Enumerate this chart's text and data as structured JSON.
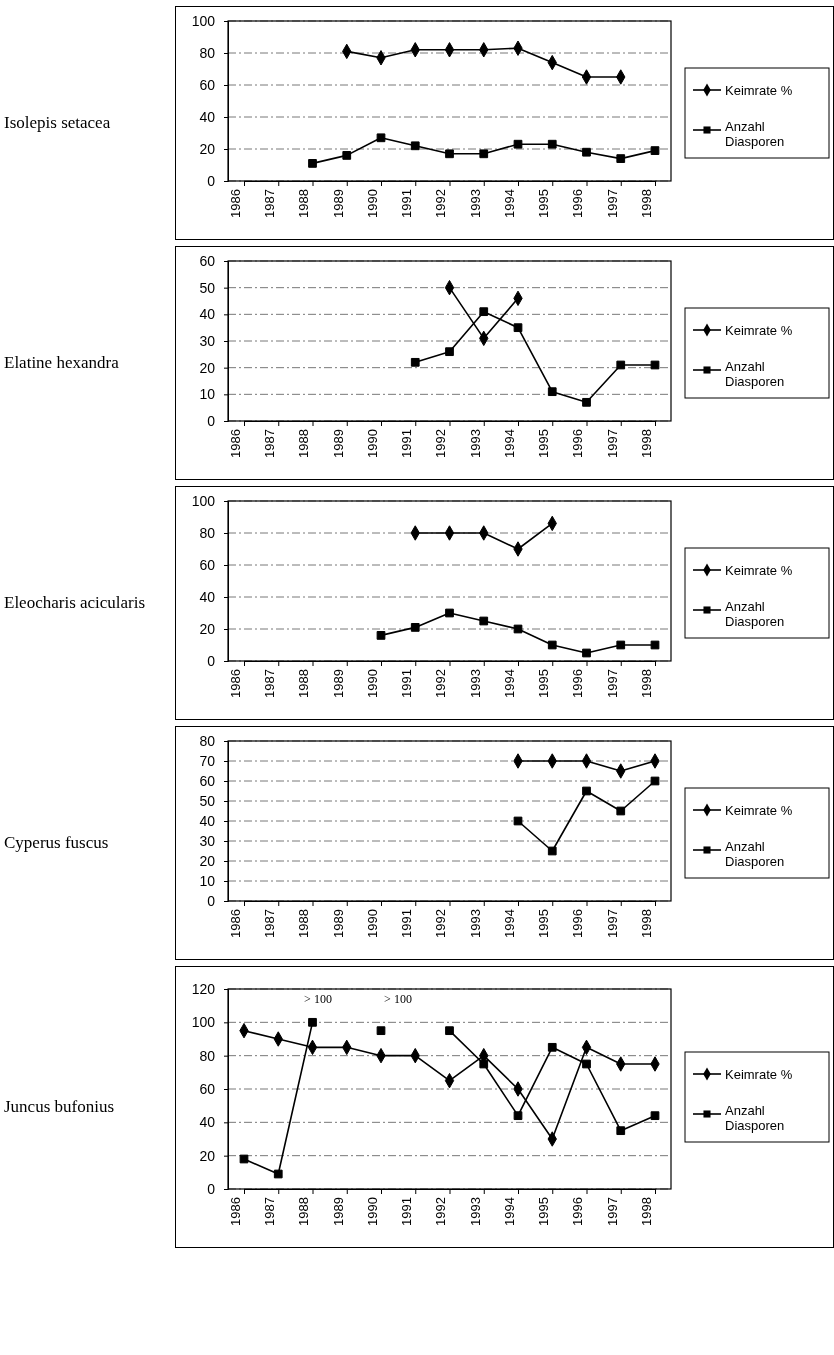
{
  "chart_data": [
    {
      "type": "line",
      "title": "Isolepis setacea",
      "categories": [
        "1986",
        "1987",
        "1988",
        "1989",
        "1990",
        "1991",
        "1992",
        "1993",
        "1994",
        "1995",
        "1996",
        "1997",
        "1998"
      ],
      "ylim": [
        0,
        100
      ],
      "yticks": [
        0,
        20,
        40,
        60,
        80,
        100
      ],
      "grid": "y",
      "legend": "right",
      "series": [
        {
          "name": "Keimrate %",
          "color": "#000000",
          "marker": "diamond",
          "values": [
            null,
            null,
            null,
            81,
            77,
            82,
            82,
            82,
            83,
            74,
            65,
            65,
            null
          ]
        },
        {
          "name": "Anzahl Diasporen",
          "color": "#000000",
          "marker": "square",
          "values": [
            null,
            null,
            11,
            16,
            27,
            22,
            17,
            17,
            23,
            23,
            18,
            14,
            19
          ]
        }
      ]
    },
    {
      "type": "line",
      "title": "Elatine hexandra",
      "categories": [
        "1986",
        "1987",
        "1988",
        "1989",
        "1990",
        "1991",
        "1992",
        "1993",
        "1994",
        "1995",
        "1996",
        "1997",
        "1998"
      ],
      "ylim": [
        0,
        60
      ],
      "yticks": [
        0,
        10,
        20,
        30,
        40,
        50,
        60
      ],
      "grid": "y",
      "legend": "right",
      "series": [
        {
          "name": "Keimrate %",
          "color": "#000000",
          "marker": "diamond",
          "values": [
            null,
            null,
            null,
            null,
            null,
            null,
            50,
            31,
            46,
            null,
            null,
            null,
            null
          ]
        },
        {
          "name": "Anzahl Diasporen",
          "color": "#000000",
          "marker": "square",
          "values": [
            null,
            null,
            null,
            null,
            null,
            22,
            26,
            41,
            35,
            11,
            7,
            21,
            21
          ]
        }
      ]
    },
    {
      "type": "line",
      "title": "Eleocharis acicularis",
      "categories": [
        "1986",
        "1987",
        "1988",
        "1989",
        "1990",
        "1991",
        "1992",
        "1993",
        "1994",
        "1995",
        "1996",
        "1997",
        "1998"
      ],
      "ylim": [
        0,
        100
      ],
      "yticks": [
        0,
        20,
        40,
        60,
        80,
        100
      ],
      "grid": "y",
      "legend": "right",
      "series": [
        {
          "name": "Keimrate %",
          "color": "#000000",
          "marker": "diamond",
          "values": [
            null,
            null,
            null,
            null,
            null,
            80,
            80,
            80,
            70,
            86,
            null,
            null,
            null
          ]
        },
        {
          "name": "Anzahl Diasporen",
          "color": "#000000",
          "marker": "square",
          "values": [
            null,
            null,
            null,
            null,
            16,
            21,
            30,
            25,
            20,
            10,
            5,
            10,
            10
          ]
        }
      ]
    },
    {
      "type": "line",
      "title": "Cyperus fuscus",
      "categories": [
        "1986",
        "1987",
        "1988",
        "1989",
        "1990",
        "1991",
        "1992",
        "1993",
        "1994",
        "1995",
        "1996",
        "1997",
        "1998"
      ],
      "ylim": [
        0,
        80
      ],
      "yticks": [
        0,
        10,
        20,
        30,
        40,
        50,
        60,
        70,
        80
      ],
      "grid": "y",
      "legend": "right",
      "series": [
        {
          "name": "Keimrate %",
          "color": "#000000",
          "marker": "diamond",
          "values": [
            null,
            null,
            null,
            null,
            null,
            null,
            null,
            null,
            70,
            70,
            70,
            65,
            70
          ]
        },
        {
          "name": "Anzahl Diasporen",
          "color": "#000000",
          "marker": "square",
          "values": [
            null,
            null,
            null,
            null,
            null,
            null,
            null,
            null,
            40,
            25,
            55,
            45,
            60
          ]
        }
      ]
    },
    {
      "type": "line",
      "title": "Juncus bufonius",
      "categories": [
        "1986",
        "1987",
        "1988",
        "1989",
        "1990",
        "1991",
        "1992",
        "1993",
        "1994",
        "1995",
        "1996",
        "1997",
        "1998"
      ],
      "ylim": [
        0,
        120
      ],
      "yticks": [
        0,
        20,
        40,
        60,
        80,
        100,
        120
      ],
      "grid": "y",
      "legend": "right",
      "annotations": [
        "> 100",
        "> 100"
      ],
      "series": [
        {
          "name": "Keimrate %",
          "color": "#000000",
          "marker": "diamond",
          "values": [
            95,
            90,
            85,
            85,
            80,
            80,
            65,
            80,
            60,
            30,
            85,
            75,
            75
          ]
        },
        {
          "name": "Anzahl Diasporen",
          "color": "#000000",
          "marker": "square",
          "values": [
            18,
            9,
            100,
            null,
            95,
            null,
            95,
            75,
            44,
            85,
            75,
            35,
            44
          ]
        }
      ]
    }
  ]
}
